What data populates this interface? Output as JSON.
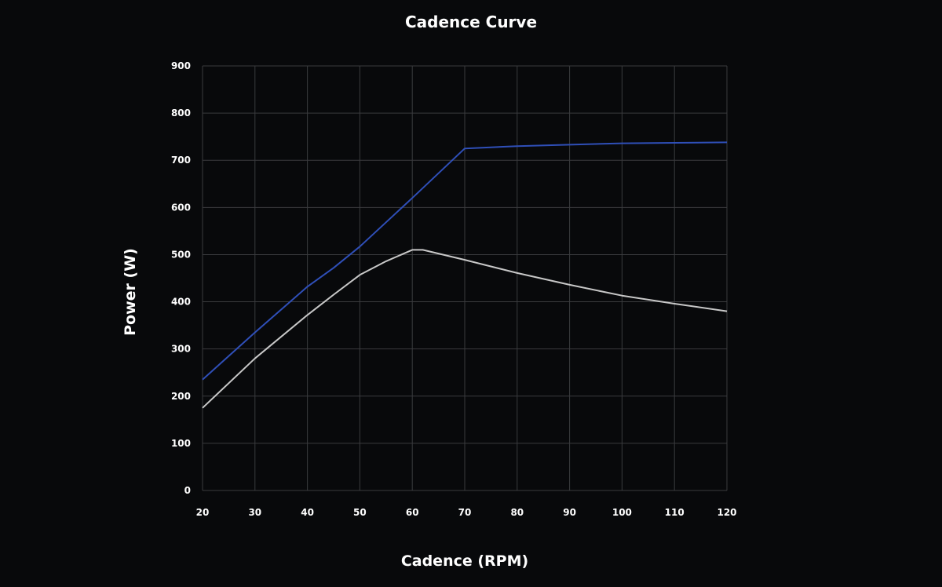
{
  "chart_data": {
    "type": "line",
    "title": "Cadence Curve",
    "xlabel": "Cadence (RPM)",
    "ylabel": "Power (W)",
    "xlim": [
      20,
      120
    ],
    "ylim": [
      0,
      900
    ],
    "xticks": [
      20,
      30,
      40,
      50,
      60,
      70,
      80,
      90,
      100,
      110,
      120
    ],
    "yticks": [
      0,
      100,
      200,
      300,
      400,
      500,
      600,
      700,
      800,
      900
    ],
    "grid": true,
    "legend": "none",
    "series": [
      {
        "name": "blue",
        "color": "#2f4fb8",
        "x": [
          20,
          30,
          40,
          45,
          50,
          60,
          70,
          80,
          90,
          100,
          110,
          120
        ],
        "y": [
          235,
          335,
          432,
          472,
          517,
          620,
          725,
          730,
          733,
          736,
          737,
          738
        ]
      },
      {
        "name": "gray",
        "color": "#c8c8c8",
        "x": [
          20,
          30,
          40,
          45,
          50,
          55,
          60,
          62,
          70,
          80,
          90,
          100,
          110,
          120
        ],
        "y": [
          175,
          280,
          372,
          415,
          457,
          486,
          510,
          510,
          489,
          461,
          436,
          413,
          396,
          380
        ]
      }
    ]
  }
}
